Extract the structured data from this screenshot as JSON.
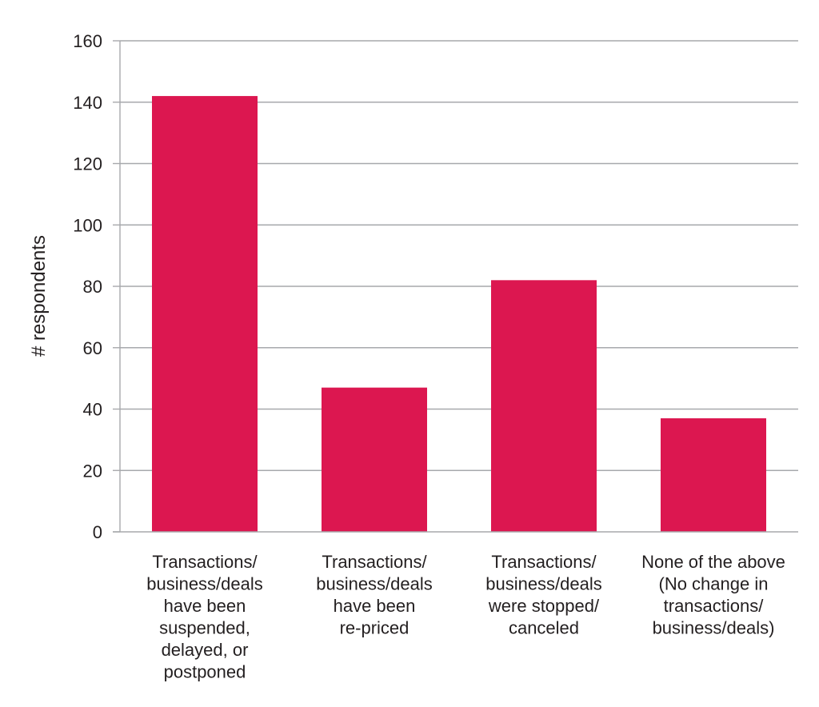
{
  "chart_data": {
    "type": "bar",
    "title": "",
    "xlabel": "",
    "ylabel": "# respondents",
    "ylim": [
      0,
      160
    ],
    "yticks": [
      0,
      20,
      40,
      60,
      80,
      100,
      120,
      140,
      160
    ],
    "grid": true,
    "legend": "none",
    "bar_color": "#dc1750",
    "grid_color": "#a7a9ac",
    "text_color": "#231f20",
    "categories": [
      [
        "Transactions/",
        "business/deals",
        "have been",
        "suspended,",
        "delayed, or",
        "postponed"
      ],
      [
        "Transactions/",
        "business/deals",
        "have been",
        "re-priced"
      ],
      [
        "Transactions/",
        "business/deals",
        "were stopped/",
        "canceled"
      ],
      [
        "None of the above",
        "(No change in",
        "transactions/",
        "business/deals)"
      ]
    ],
    "values": [
      142,
      47,
      82,
      37
    ]
  }
}
